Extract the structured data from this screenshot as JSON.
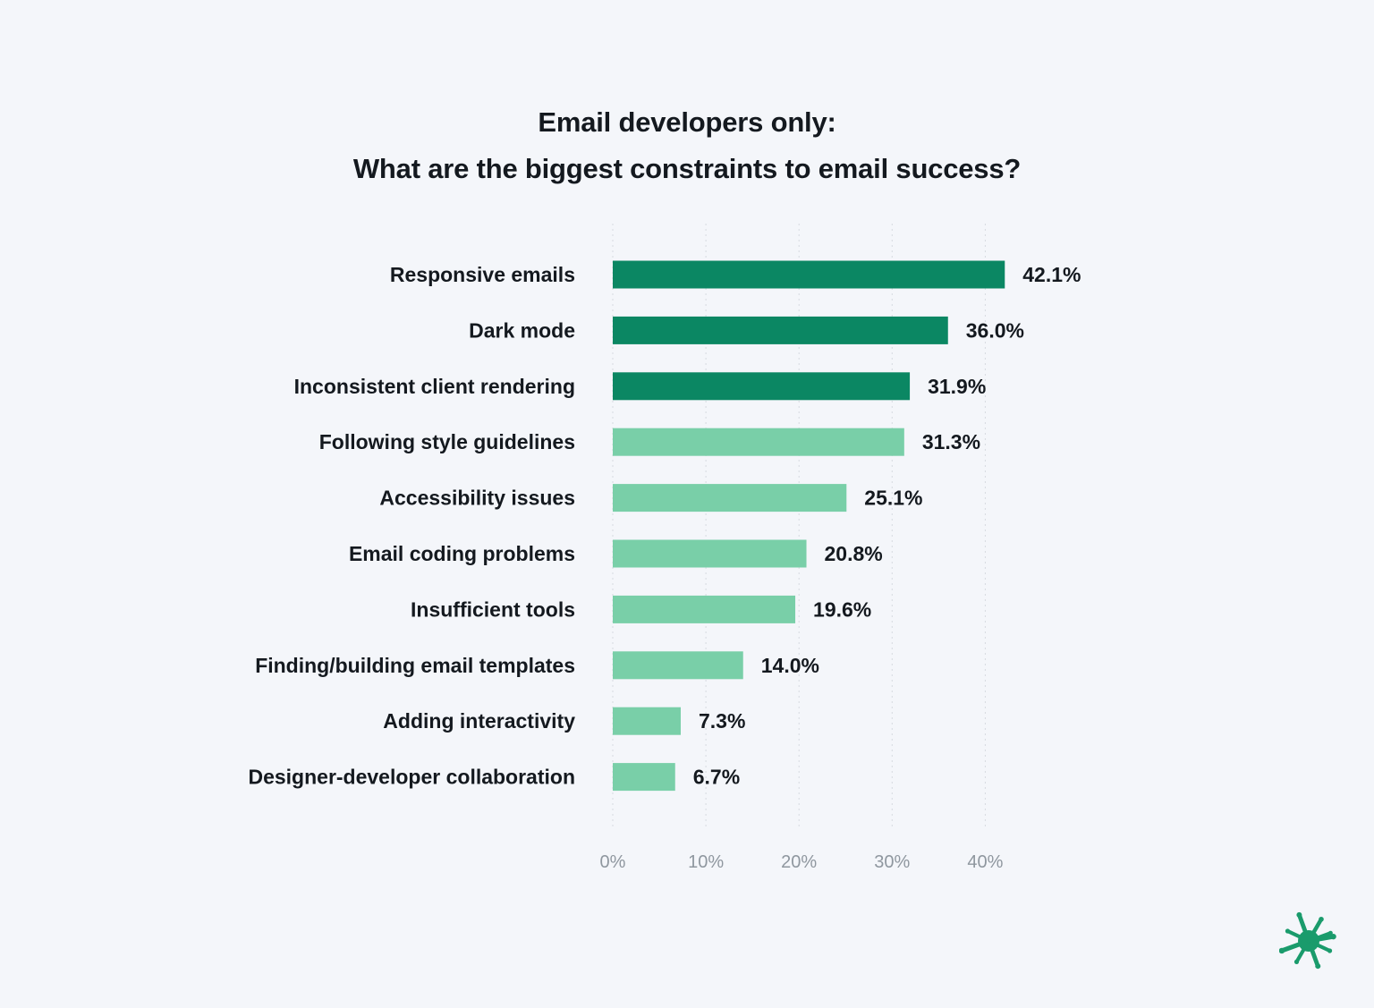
{
  "chart_data": {
    "type": "bar",
    "orientation": "horizontal",
    "title": "Email developers only:",
    "subtitle": "What are the biggest constraints to email success?",
    "categories": [
      "Responsive emails",
      "Dark mode",
      "Inconsistent client rendering",
      "Following style guidelines",
      "Accessibility issues",
      "Email coding problems",
      "Insufficient tools",
      "Finding/building email templates",
      "Adding interactivity",
      "Designer-developer collaboration"
    ],
    "values": [
      42.1,
      36.0,
      31.9,
      31.3,
      25.1,
      20.8,
      19.6,
      14.0,
      7.3,
      6.7
    ],
    "value_labels": [
      "42.1%",
      "36.0%",
      "31.9%",
      "31.3%",
      "25.1%",
      "20.8%",
      "19.6%",
      "14.0%",
      "7.3%",
      "6.7%"
    ],
    "highlighted_top": 3,
    "xlim": [
      0,
      40
    ],
    "xticks": [
      0,
      10,
      20,
      30,
      40
    ],
    "xtick_labels": [
      "0%",
      "10%",
      "20%",
      "30%",
      "40%"
    ],
    "xlabel": "",
    "ylabel": "",
    "grid": "vertical dotted",
    "legend": "none"
  },
  "colors": {
    "background": "#f4f6fa",
    "highlight_bar": "#0b8763",
    "bar": "#79cfa8",
    "text": "#14191f",
    "tick_text": "#8f979f",
    "logo": "#1a9b6c"
  },
  "logo": {
    "icon": "splat-logo-icon"
  }
}
